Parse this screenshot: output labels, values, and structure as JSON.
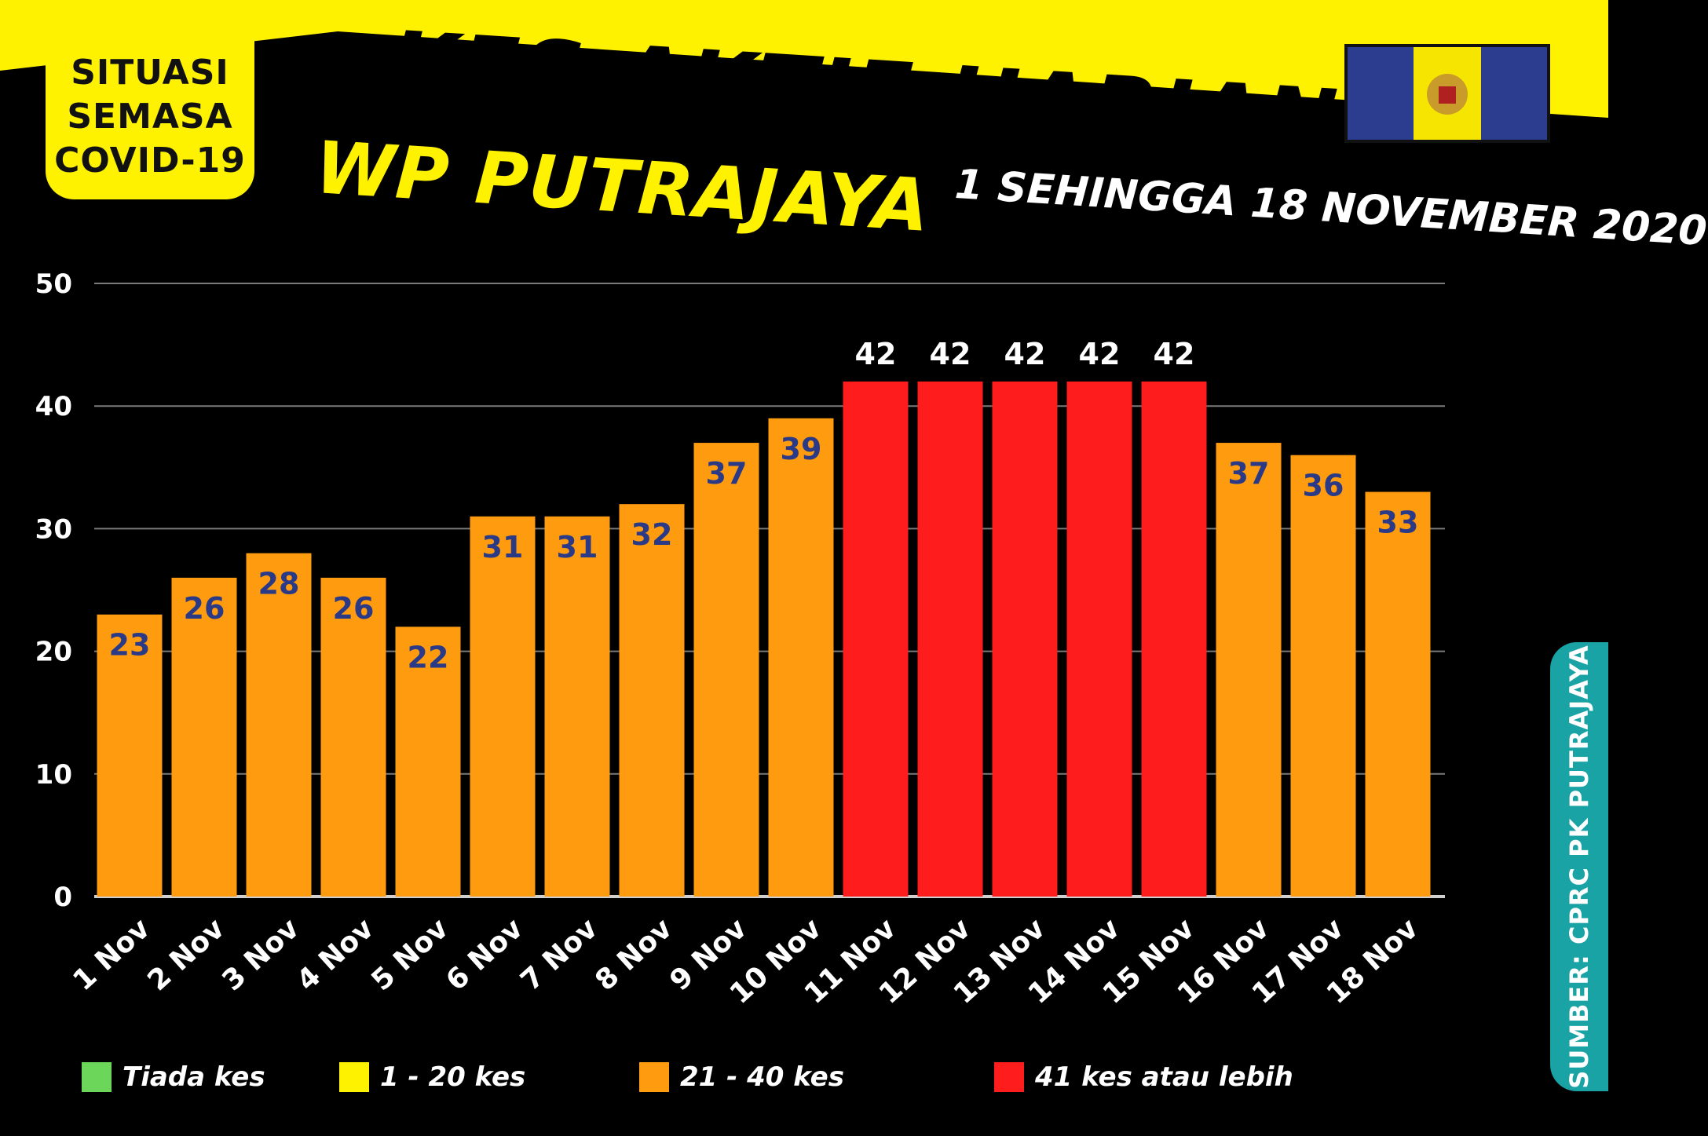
{
  "badge": {
    "lines": [
      "SITUASI",
      "SEMASA",
      "COVID-19"
    ]
  },
  "title": "KES AKTIF HARIAN",
  "subtitle": "WP PUTRAJAYA",
  "date_range": "1 SEHINGGA 18 NOVEMBER 2020",
  "source": "SUMBER: CPRC PK PUTRAJAYA",
  "colors": {
    "banner": "#fff200",
    "bar_orange": "#ff9b0f",
    "bar_red": "#ff1c1c",
    "label_orange": "#2b3a86",
    "label_red": "#ffffff",
    "source_bg": "#1aa3a5",
    "flag_blue": "#2c3d8f",
    "flag_yellow": "#f6e500"
  },
  "legend": [
    {
      "label": "Tiada kes",
      "color": "#6bd65a"
    },
    {
      "label": "1 - 20 kes",
      "color": "#fff200"
    },
    {
      "label": "21 - 40 kes",
      "color": "#ff9b0f"
    },
    {
      "label": "41 kes atau lebih",
      "color": "#ff1c1c"
    }
  ],
  "chart_data": {
    "type": "bar",
    "categories": [
      "1 Nov",
      "2 Nov",
      "3 Nov",
      "4 Nov",
      "5 Nov",
      "6 Nov",
      "7 Nov",
      "8 Nov",
      "9 Nov",
      "10 Nov",
      "11 Nov",
      "12 Nov",
      "13 Nov",
      "14 Nov",
      "15 Nov",
      "16 Nov",
      "17 Nov",
      "18 Nov"
    ],
    "values": [
      23,
      26,
      28,
      26,
      22,
      31,
      31,
      32,
      37,
      39,
      42,
      42,
      42,
      42,
      42,
      37,
      36,
      33
    ],
    "title": "KES AKTIF HARIAN",
    "subtitle": "WP PUTRAJAYA",
    "xlabel": "",
    "ylabel": "",
    "ylim": [
      0,
      50
    ],
    "yticks": [
      0,
      10,
      20,
      30,
      40,
      50
    ],
    "grid": true,
    "data_labels": true,
    "legend_position": "bottom"
  }
}
